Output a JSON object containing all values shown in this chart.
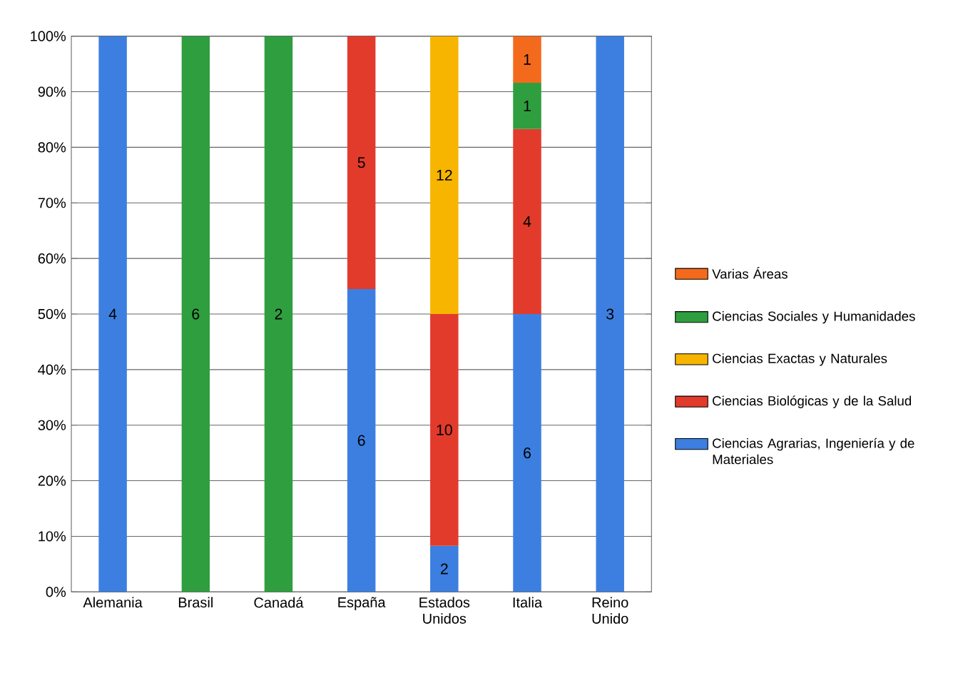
{
  "chart_data": {
    "type": "bar",
    "stacked": true,
    "categories": [
      "Alemania",
      "Brasil",
      "Canadá",
      "España",
      "Estados Unidos",
      "Italia",
      "Reino Unido"
    ],
    "series": [
      {
        "name": "Ciencias Agrarias, Ingeniería y de Materiales",
        "color": "#3d7fe0",
        "values": [
          100,
          null,
          null,
          54.5,
          8.3,
          50,
          100
        ]
      },
      {
        "name": "Ciencias Biológicas y de la Salud",
        "color": "#e23b2c",
        "values": [
          null,
          null,
          null,
          45.5,
          41.7,
          33.3,
          null
        ]
      },
      {
        "name": "Ciencias Exactas y Naturales",
        "color": "#f7b500",
        "values": [
          null,
          null,
          null,
          null,
          50,
          null,
          null
        ]
      },
      {
        "name": "Ciencias Sociales y Humanidades",
        "color": "#2f9e3f",
        "values": [
          null,
          100,
          100,
          null,
          null,
          8.3,
          null
        ]
      },
      {
        "name": "Varias Áreas",
        "color": "#f46a1c",
        "values": [
          null,
          null,
          null,
          null,
          null,
          8.4,
          null
        ]
      }
    ],
    "annotations": [
      "4",
      "6",
      "2",
      "6",
      "3",
      "5",
      "10",
      "4",
      "12",
      "6",
      "2",
      "1",
      "1"
    ],
    "ylim": [
      0,
      100
    ],
    "yticks": [
      {
        "value": 0,
        "label": "0%"
      },
      {
        "value": 10,
        "label": "10%"
      },
      {
        "value": 20,
        "label": "20%"
      },
      {
        "value": 30,
        "label": "30%"
      },
      {
        "value": 40,
        "label": "40%"
      },
      {
        "value": 50,
        "label": "50%"
      },
      {
        "value": 60,
        "label": "60%"
      },
      {
        "value": 70,
        "label": "70%"
      },
      {
        "value": 80,
        "label": "80%"
      },
      {
        "value": 90,
        "label": "90%"
      },
      {
        "value": 100,
        "label": "100%"
      }
    ],
    "grid": "y",
    "legend": "right"
  }
}
